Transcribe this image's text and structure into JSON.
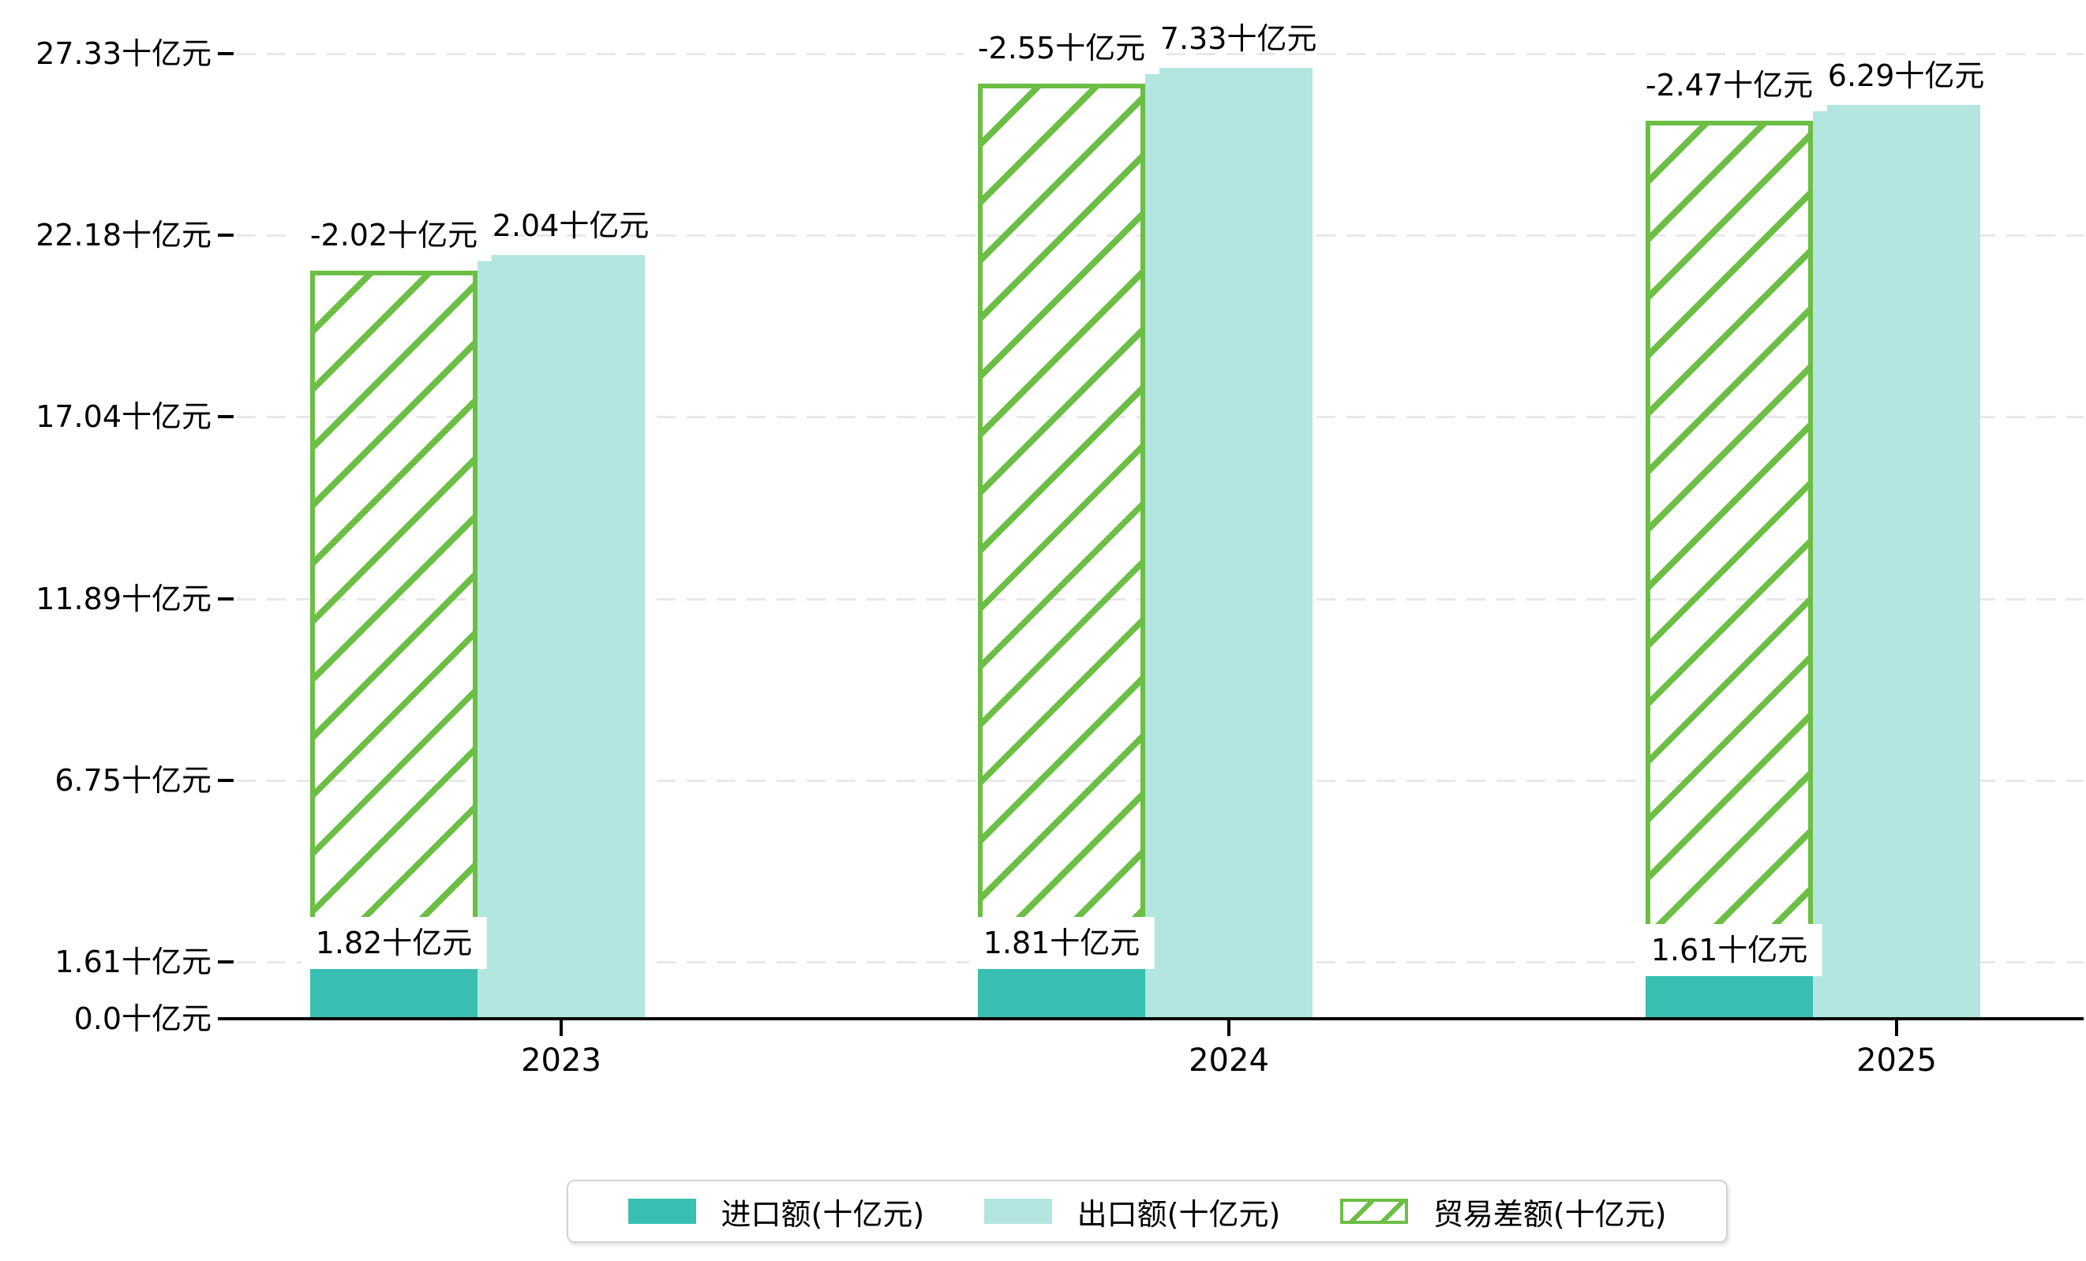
{
  "chart_data": {
    "type": "bar",
    "title": "",
    "unit": "十亿元",
    "categories": [
      "2023",
      "2024",
      "2025"
    ],
    "series": [
      {
        "name": "进口额(十亿元)",
        "key": "import",
        "values": [
          1.82,
          1.81,
          1.61
        ],
        "labels": [
          "1.82十亿元",
          "1.81十亿元",
          "1.61十亿元"
        ],
        "color": "#38bfb1",
        "style": "solid"
      },
      {
        "name": "出口额(十亿元)",
        "key": "export",
        "values": [
          22.04,
          27.33,
          26.29
        ],
        "labels": [
          "22.04十亿元",
          "27.33十亿元",
          "26.29十亿元"
        ],
        "color": "#b3e6e0",
        "style": "solid"
      },
      {
        "name": "贸易差额(十亿元)",
        "key": "balance",
        "values": [
          -2.02,
          -2.55,
          -2.47
        ],
        "labels": [
          "-2.02十亿元",
          "-2.55十亿元",
          "-2.47十亿元"
        ],
        "color": "#6cbe45",
        "style": "hatched"
      }
    ],
    "y_axis": {
      "range": [
        0,
        27.33
      ],
      "ticks": [
        {
          "value": 0.0,
          "label": "0.0十亿元"
        },
        {
          "value": 1.61,
          "label": "1.61十亿元"
        },
        {
          "value": 6.75,
          "label": "6.75十亿元"
        },
        {
          "value": 11.89,
          "label": "11.89十亿元"
        },
        {
          "value": 17.04,
          "label": "17.04十亿元"
        },
        {
          "value": 22.18,
          "label": "22.18十亿元"
        },
        {
          "value": 27.33,
          "label": "27.33十亿元"
        }
      ]
    },
    "x_axis": {
      "labels": [
        "2023",
        "2024",
        "2025"
      ]
    },
    "legend": {
      "position": "bottom",
      "items": [
        "进口额(十亿元)",
        "出口额(十亿元)",
        "贸易差额(十亿元)"
      ]
    },
    "grid": {
      "horizontal": "dashed"
    },
    "colors": {
      "import": "#38bfb1",
      "export": "#b3e6e0",
      "balance": "#6cbe45",
      "grid": "#e8e8e8",
      "axis": "#000000",
      "label_bg": "#ffffff"
    }
  }
}
